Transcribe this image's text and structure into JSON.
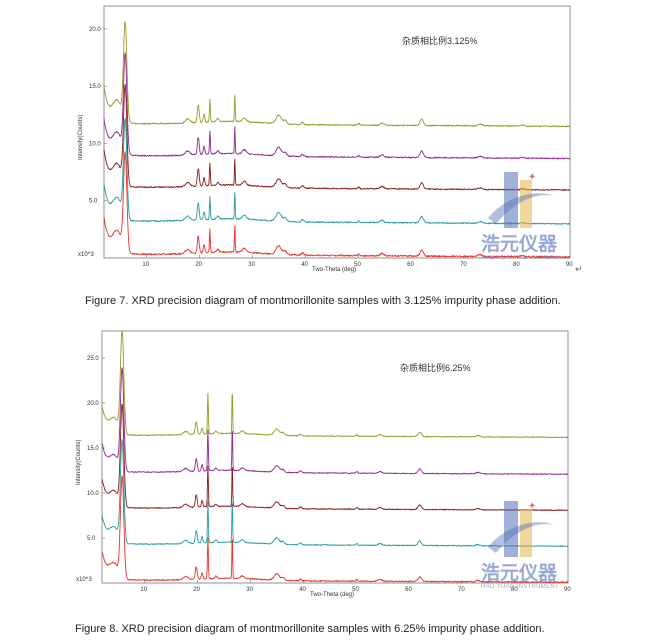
{
  "figures": [
    {
      "caption": "Figure 7. XRD precision diagram of montmorillonite samples with 3.125% impurity phase addition.",
      "annotation": "杂质相比例3.125%"
    },
    {
      "caption": "Figure 8. XRD precision diagram of montmorillonite samples with 6.25% impurity phase addition.",
      "annotation": "杂质相比例6.25%"
    }
  ],
  "watermark": {
    "text": "浩元仪器",
    "subtext": "HAO YUAN INSTRUMENT",
    "colors": {
      "blue": "#5470b8",
      "gold": "#e8b64a",
      "red": "#c9302c"
    }
  },
  "chart_data": [
    {
      "type": "line",
      "title": "",
      "xlabel": "Two-Theta (deg)",
      "ylabel": "Intensity(Counts)",
      "ylabel_multiplier": "x10^3",
      "xlim": [
        2,
        90
      ],
      "ylim": [
        0,
        22
      ],
      "x_ticks": [
        "10",
        "20",
        "30",
        "40",
        "50",
        "60",
        "70",
        "80",
        "90"
      ],
      "y_ticks": [
        "5.0",
        "10.0",
        "15.0",
        "20.0"
      ],
      "grid": false,
      "annotation": "杂质相比例3.125%",
      "peaks": [
        {
          "x": 4.5,
          "h": 1.8,
          "w": 1.2
        },
        {
          "x": 6.0,
          "h": 8.5,
          "w": 0.45
        },
        {
          "x": 17.8,
          "h": 0.35,
          "w": 0.6
        },
        {
          "x": 19.8,
          "h": 1.5,
          "w": 0.25
        },
        {
          "x": 20.9,
          "h": 0.7,
          "w": 0.2
        },
        {
          "x": 22.0,
          "h": 2.0,
          "w": 0.12
        },
        {
          "x": 23.5,
          "h": 0.25,
          "w": 0.3
        },
        {
          "x": 26.7,
          "h": 2.4,
          "w": 0.1
        },
        {
          "x": 28.5,
          "h": 0.35,
          "w": 0.5
        },
        {
          "x": 35.0,
          "h": 0.75,
          "w": 0.7
        },
        {
          "x": 36.2,
          "h": 0.3,
          "w": 0.4
        },
        {
          "x": 39.5,
          "h": 0.2,
          "w": 0.3
        },
        {
          "x": 50.1,
          "h": 0.15,
          "w": 0.2
        },
        {
          "x": 54.5,
          "h": 0.2,
          "w": 0.5
        },
        {
          "x": 62.0,
          "h": 0.55,
          "w": 0.45
        },
        {
          "x": 73.0,
          "h": 0.15,
          "w": 0.5
        },
        {
          "x": 81.0,
          "h": 0.1,
          "w": 0.4
        }
      ],
      "series": [
        {
          "name": "",
          "color": "#e8322b",
          "offset": 0.0,
          "noise": 0.06
        },
        {
          "name": "",
          "color": "#2a9b9b",
          "offset": 2.9,
          "noise": 0.05
        },
        {
          "name": "",
          "color": "#8a1a1a",
          "offset": 5.85,
          "noise": 0.05
        },
        {
          "name": "",
          "color": "#8e2a8e",
          "offset": 8.6,
          "noise": 0.05
        },
        {
          "name": "",
          "color": "#9a9a2a",
          "offset": 11.4,
          "noise": 0.05
        }
      ]
    },
    {
      "type": "line",
      "title": "",
      "xlabel": "Two-Theta (deg)",
      "ylabel": "Intensity(Counts)",
      "ylabel_multiplier": "x10^3",
      "xlim": [
        2,
        90
      ],
      "ylim": [
        0,
        28
      ],
      "x_ticks": [
        "10",
        "20",
        "30",
        "40",
        "50",
        "60",
        "70",
        "80",
        "90"
      ],
      "y_ticks": [
        "5.0",
        "10.0",
        "15.0",
        "20.0",
        "25.0"
      ],
      "grid": false,
      "annotation": "杂质相比例6.25%",
      "peaks": [
        {
          "x": 4.3,
          "h": 1.6,
          "w": 1.2
        },
        {
          "x": 5.8,
          "h": 11.2,
          "w": 0.45
        },
        {
          "x": 17.8,
          "h": 0.35,
          "w": 0.6
        },
        {
          "x": 19.8,
          "h": 1.4,
          "w": 0.25
        },
        {
          "x": 20.9,
          "h": 0.7,
          "w": 0.2
        },
        {
          "x": 22.0,
          "h": 4.5,
          "w": 0.12
        },
        {
          "x": 23.5,
          "h": 0.25,
          "w": 0.3
        },
        {
          "x": 26.6,
          "h": 5.0,
          "w": 0.1
        },
        {
          "x": 28.5,
          "h": 0.3,
          "w": 0.5
        },
        {
          "x": 35.0,
          "h": 0.7,
          "w": 0.7
        },
        {
          "x": 36.2,
          "h": 0.3,
          "w": 0.4
        },
        {
          "x": 39.5,
          "h": 0.2,
          "w": 0.3
        },
        {
          "x": 50.1,
          "h": 0.2,
          "w": 0.2
        },
        {
          "x": 54.5,
          "h": 0.2,
          "w": 0.5
        },
        {
          "x": 62.0,
          "h": 0.5,
          "w": 0.45
        },
        {
          "x": 73.0,
          "h": 0.15,
          "w": 0.5
        }
      ],
      "series": [
        {
          "name": "",
          "color": "#e8322b",
          "offset": 0.0,
          "noise": 0.06
        },
        {
          "name": "",
          "color": "#2a9b9b",
          "offset": 4.0,
          "noise": 0.05
        },
        {
          "name": "",
          "color": "#8a1a1a",
          "offset": 8.0,
          "noise": 0.05
        },
        {
          "name": "",
          "color": "#8e2a8e",
          "offset": 12.0,
          "noise": 0.05
        },
        {
          "name": "",
          "color": "#9a9a2a",
          "offset": 16.1,
          "noise": 0.05
        }
      ]
    }
  ]
}
